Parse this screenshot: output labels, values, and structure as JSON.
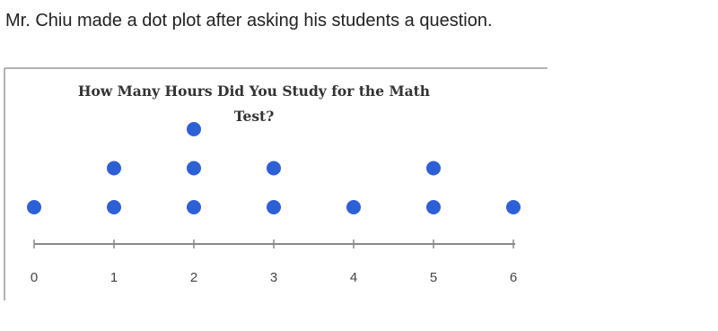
{
  "question": "Mr. Chiu made a dot plot after asking his students a question.",
  "chart_data": {
    "type": "dot",
    "title": "How Many Hours Did You Study for the Math Test?",
    "x": [
      0,
      1,
      2,
      3,
      4,
      5,
      6
    ],
    "values": [
      1,
      2,
      3,
      2,
      1,
      2,
      1
    ],
    "color": "#2d5fd6",
    "xlim": [
      0,
      6
    ],
    "xticks": [
      0,
      1,
      2,
      3,
      4,
      5,
      6
    ]
  }
}
